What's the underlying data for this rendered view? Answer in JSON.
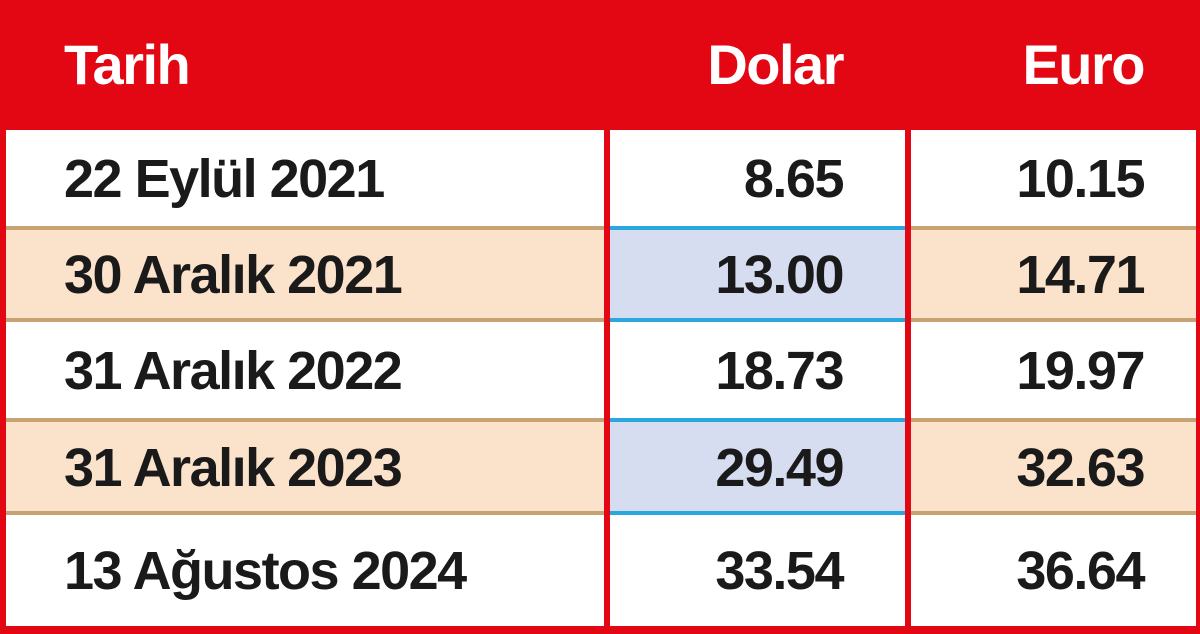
{
  "table": {
    "header": [
      "Tarih",
      "Dolar",
      "Euro"
    ],
    "rows": [
      [
        "22 Eylül 2021",
        "8.65",
        "10.15"
      ],
      [
        "30 Aralık 2021",
        "13.00",
        "14.71"
      ],
      [
        "31 Aralık 2022",
        "18.73",
        "19.97"
      ],
      [
        "31 Aralık 2023",
        "29.49",
        "32.63"
      ],
      [
        "13 Ağustos 2024",
        "33.54",
        "36.64"
      ]
    ]
  }
}
